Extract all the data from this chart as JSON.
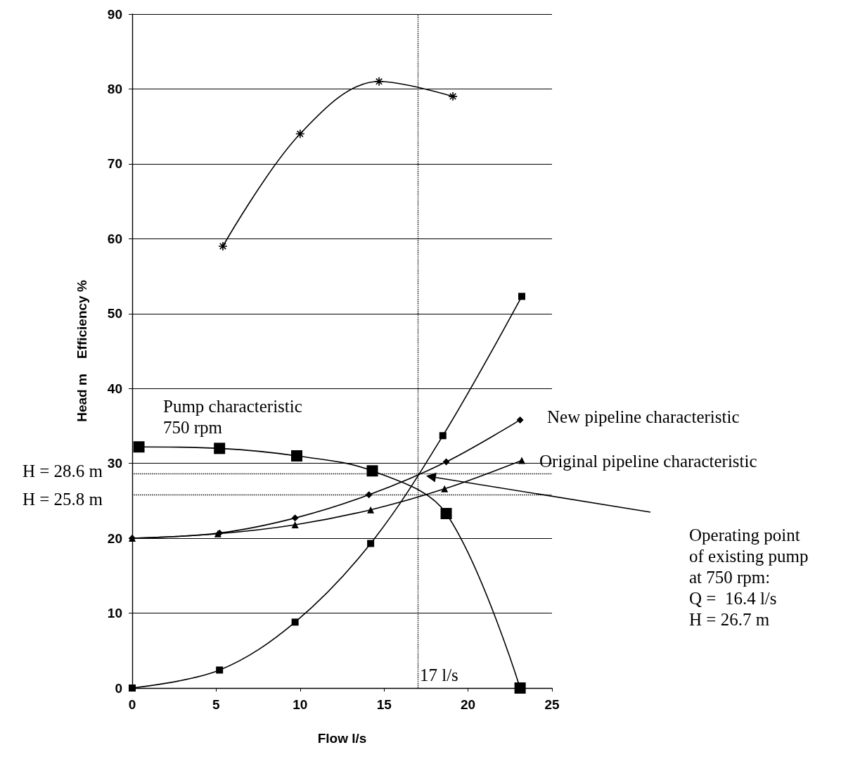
{
  "chart_data": {
    "type": "line",
    "xlabel": "Flow l/s",
    "ylabel": "Head m    Efficiency %",
    "xlim": [
      0,
      25
    ],
    "xticks": [
      0,
      5,
      10,
      15,
      20,
      25
    ],
    "ylim": [
      0,
      90
    ],
    "yticks": [
      0,
      10,
      20,
      30,
      40,
      50,
      60,
      70,
      80,
      90
    ],
    "grid": "y",
    "line_style": "solid",
    "series": [
      {
        "color": "#000000",
        "marker": "cross",
        "x": [
          5.4,
          10.0,
          14.7,
          19.1
        ],
        "values": [
          59,
          74,
          81,
          79
        ]
      },
      {
        "color": "#000000",
        "marker": "square",
        "x": [
          0.4,
          5.2,
          9.8,
          14.3,
          18.7,
          23.1
        ],
        "values": [
          32.2,
          32,
          31,
          29,
          23.3,
          0
        ]
      },
      {
        "color": "#000000",
        "marker": "square",
        "x": [
          0,
          5.2,
          9.7,
          14.2,
          18.5,
          23.2
        ],
        "values": [
          0,
          2.4,
          8.8,
          19.3,
          33.7,
          52.3
        ]
      },
      {
        "color": "#000000",
        "marker": "diamond",
        "x": [
          0,
          5.2,
          9.7,
          14.1,
          18.7,
          23.1
        ],
        "values": [
          20,
          20.7,
          22.7,
          25.8,
          30.2,
          35.8
        ]
      },
      {
        "color": "#000000",
        "marker": "triangle",
        "x": [
          0,
          5.1,
          9.7,
          14.2,
          18.6,
          23.2
        ],
        "values": [
          20,
          20.6,
          21.8,
          23.8,
          26.6,
          30.4
        ]
      }
    ],
    "ref_lines": [
      {
        "axis": "x",
        "value": 17,
        "label": "17 l/s",
        "line_style": "dotted"
      },
      {
        "axis": "y",
        "value": 28.6,
        "label": "H = 28.6 m",
        "line_style": "dotted"
      },
      {
        "axis": "y",
        "value": 25.8,
        "label": "H = 25.8 m",
        "line_style": "dotted"
      }
    ],
    "annotations": [
      "Pump characteristic\n750 rpm",
      "New pipeline characteristic",
      "Original pipeline characteristic",
      "Operating point\nof existing pump\nat 750 rpm:\nQ =  16.4 l/s\nH = 26.7 m"
    ]
  }
}
